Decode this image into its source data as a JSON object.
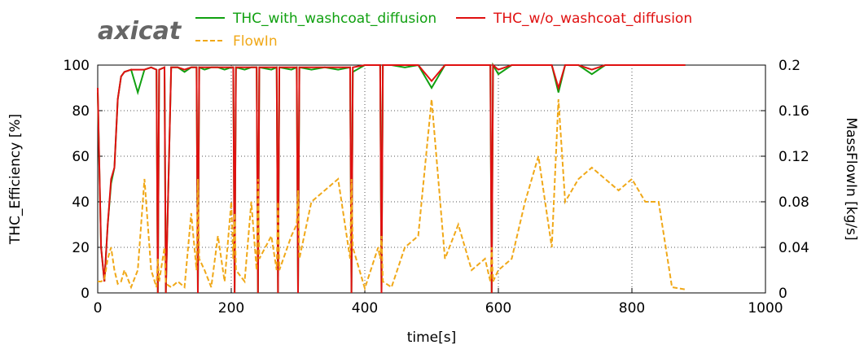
{
  "chart_data": {
    "type": "line",
    "logo": "axicat",
    "xlabel": "time[s]",
    "ylabel": "THC_Efficiency [%]",
    "y2label": "MassFlowIn [kg/s]",
    "xlim": [
      0,
      1000
    ],
    "xticks": [
      0,
      200,
      400,
      600,
      800,
      1000
    ],
    "ylim": [
      0,
      100
    ],
    "yticks": [
      0,
      20,
      40,
      60,
      80,
      100
    ],
    "y2lim": [
      0,
      0.2
    ],
    "y2ticks": [
      0,
      0.04,
      0.08,
      0.12,
      0.16,
      0.2
    ],
    "grid": true,
    "x": [
      0,
      5,
      10,
      15,
      20,
      25,
      30,
      35,
      40,
      50,
      60,
      70,
      80,
      88,
      90,
      92,
      100,
      102,
      110,
      120,
      130,
      140,
      148,
      150,
      152,
      160,
      170,
      180,
      190,
      200,
      203,
      205,
      207,
      220,
      230,
      238,
      240,
      242,
      260,
      268,
      270,
      272,
      290,
      298,
      300,
      302,
      320,
      340,
      360,
      378,
      380,
      382,
      400,
      420,
      423,
      425,
      427,
      440,
      460,
      480,
      500,
      520,
      540,
      560,
      580,
      588,
      590,
      592,
      600,
      620,
      640,
      660,
      680,
      690,
      700,
      720,
      740,
      760,
      780,
      800,
      820,
      840,
      860,
      880
    ],
    "series": [
      {
        "name": "THC_with_washcoat_diffusion",
        "color": "#10a010",
        "dash": false,
        "values": [
          88,
          20,
          5,
          30,
          48,
          55,
          85,
          95,
          97,
          98,
          88,
          98,
          99,
          98,
          0,
          98,
          99,
          0,
          99,
          99,
          97,
          99,
          99,
          0,
          99,
          98,
          99,
          99,
          98,
          99,
          99,
          0,
          99,
          98,
          99,
          99,
          0,
          99,
          98,
          99,
          0,
          99,
          98,
          99,
          0,
          99,
          98,
          99,
          98,
          99,
          0,
          97,
          100,
          100,
          100,
          0,
          100,
          100,
          99,
          100,
          90,
          100,
          100,
          100,
          100,
          100,
          0,
          100,
          96,
          100,
          100,
          100,
          100,
          88,
          100,
          100,
          96,
          100,
          100,
          100,
          100,
          100,
          100,
          100
        ]
      },
      {
        "name": "THC_w/o_washcoat_diffusion",
        "color": "#e01010",
        "dash": false,
        "values": [
          90,
          20,
          5,
          30,
          50,
          55,
          85,
          95,
          97,
          98,
          98,
          98,
          99,
          98,
          0,
          98,
          99,
          0,
          99,
          99,
          98,
          99,
          99,
          0,
          99,
          99,
          99,
          99,
          99,
          99,
          99,
          0,
          99,
          99,
          99,
          99,
          0,
          99,
          99,
          99,
          0,
          99,
          99,
          99,
          0,
          99,
          99,
          99,
          99,
          99,
          0,
          99,
          100,
          100,
          100,
          0,
          100,
          100,
          100,
          100,
          93,
          100,
          100,
          100,
          100,
          100,
          0,
          100,
          98,
          100,
          100,
          100,
          100,
          90,
          100,
          100,
          98,
          100,
          100,
          100,
          100,
          100,
          100,
          100
        ]
      },
      {
        "name": "FlowIn",
        "color": "#f0a818",
        "dash": true,
        "axis": "y2",
        "values": [
          0.01,
          0.01,
          0.012,
          0.03,
          0.04,
          0.02,
          0.008,
          0.01,
          0.02,
          0.005,
          0.02,
          0.1,
          0.02,
          0.005,
          0.03,
          0.01,
          0.04,
          0.008,
          0.005,
          0.01,
          0.005,
          0.07,
          0.02,
          0.1,
          0.03,
          0.02,
          0.005,
          0.05,
          0.01,
          0.08,
          0.03,
          0.07,
          0.02,
          0.01,
          0.08,
          0.02,
          0.1,
          0.03,
          0.05,
          0.02,
          0.08,
          0.02,
          0.05,
          0.06,
          0.09,
          0.03,
          0.08,
          0.09,
          0.1,
          0.03,
          0.1,
          0.04,
          0.004,
          0.04,
          0.03,
          0.05,
          0.01,
          0.005,
          0.04,
          0.05,
          0.17,
          0.03,
          0.06,
          0.02,
          0.03,
          0.01,
          0.04,
          0.01,
          0.02,
          0.03,
          0.08,
          0.12,
          0.04,
          0.17,
          0.08,
          0.1,
          0.11,
          0.1,
          0.09,
          0.1,
          0.08,
          0.08,
          0.005,
          0.003
        ]
      }
    ]
  }
}
